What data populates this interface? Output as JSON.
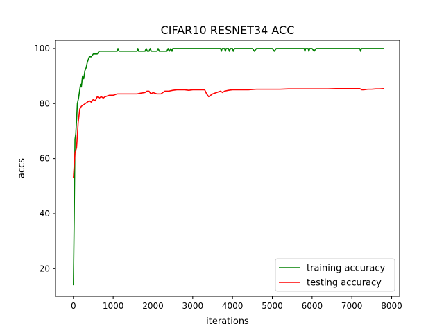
{
  "chart_data": {
    "type": "line",
    "title": "CIFAR10 RESNET34 ACC",
    "xlabel": "iterations",
    "ylabel": "accs",
    "xlim": [
      -450,
      8200
    ],
    "ylim": [
      10,
      103
    ],
    "xticks": [
      0,
      1000,
      2000,
      3000,
      4000,
      5000,
      6000,
      7000,
      8000
    ],
    "xtick_labels": [
      "0",
      "1000",
      "2000",
      "3000",
      "4000",
      "5000",
      "6000",
      "7000",
      "8000"
    ],
    "yticks": [
      20,
      40,
      60,
      80,
      100
    ],
    "ytick_labels": [
      "20",
      "40",
      "60",
      "80",
      "100"
    ],
    "grid": false,
    "legend_position": "lower-right",
    "series": [
      {
        "name": "training accuracy",
        "color": "#008000",
        "x": [
          0,
          20,
          40,
          60,
          80,
          100,
          130,
          160,
          180,
          200,
          230,
          260,
          290,
          320,
          350,
          400,
          450,
          500,
          550,
          600,
          650,
          700,
          750,
          800,
          1000,
          1100,
          1120,
          1150,
          1600,
          1620,
          1640,
          1800,
          1830,
          1860,
          1900,
          1930,
          1960,
          2100,
          2130,
          2160,
          2350,
          2380,
          2410,
          2450,
          2480,
          2500,
          2600,
          3000,
          3500,
          3700,
          3720,
          3740,
          3800,
          3820,
          3840,
          3900,
          3920,
          3950,
          4000,
          4020,
          4050,
          4100,
          4500,
          4550,
          4600,
          5000,
          5050,
          5100,
          5800,
          5820,
          5840,
          5900,
          5920,
          5940,
          6000,
          6050,
          6100,
          7000,
          7200,
          7220,
          7240,
          7500,
          7800
        ],
        "values": [
          14,
          38,
          67,
          69,
          74,
          80,
          82,
          85,
          87,
          86,
          90,
          89,
          92,
          93,
          95,
          97,
          97,
          98,
          98,
          98,
          99,
          99,
          99,
          99,
          99,
          99,
          100,
          99,
          99,
          100,
          99,
          99,
          100,
          99,
          99,
          100,
          99,
          99,
          100,
          99,
          99,
          100,
          99,
          100,
          99,
          100,
          100,
          100,
          100,
          100,
          99,
          100,
          100,
          99,
          100,
          100,
          99,
          100,
          100,
          99,
          100,
          100,
          100,
          99,
          100,
          100,
          99,
          100,
          100,
          99,
          100,
          100,
          99,
          100,
          100,
          99,
          100,
          100,
          100,
          99,
          100,
          100,
          100
        ]
      },
      {
        "name": "testing accuracy",
        "color": "#ff0000",
        "x": [
          0,
          40,
          80,
          120,
          160,
          200,
          250,
          300,
          350,
          400,
          450,
          500,
          550,
          600,
          650,
          700,
          750,
          800,
          900,
          1000,
          1100,
          1200,
          1300,
          1400,
          1500,
          1600,
          1700,
          1800,
          1850,
          1900,
          1950,
          2000,
          2100,
          2200,
          2300,
          2400,
          2500,
          2600,
          2700,
          2800,
          2900,
          3000,
          3100,
          3200,
          3300,
          3350,
          3400,
          3500,
          3600,
          3700,
          3750,
          3800,
          3900,
          4000,
          4200,
          4400,
          4600,
          4800,
          5000,
          5200,
          5400,
          5600,
          5800,
          6000,
          6200,
          6400,
          6600,
          6800,
          7000,
          7200,
          7250,
          7300,
          7400,
          7500,
          7600,
          7700,
          7800
        ],
        "values": [
          53,
          62,
          64,
          73,
          78,
          79,
          79.5,
          80,
          80.5,
          81,
          80.5,
          81.5,
          81,
          82.5,
          82,
          82.5,
          82,
          82.5,
          83,
          83,
          83.5,
          83.5,
          83.5,
          83.5,
          83.5,
          83.5,
          83.8,
          84,
          84.5,
          84.5,
          83.5,
          84,
          83.5,
          83.5,
          84.5,
          84.5,
          84.8,
          85,
          85,
          85,
          84.8,
          85,
          85,
          85,
          85,
          83.5,
          82.5,
          83.5,
          84,
          84.5,
          84,
          84.5,
          84.8,
          85,
          85,
          85,
          85.2,
          85.2,
          85.2,
          85.2,
          85.3,
          85.3,
          85.3,
          85.3,
          85.3,
          85.3,
          85.4,
          85.4,
          85.4,
          85.4,
          85,
          85,
          85.2,
          85.2,
          85.3,
          85.3,
          85.4
        ]
      }
    ]
  }
}
